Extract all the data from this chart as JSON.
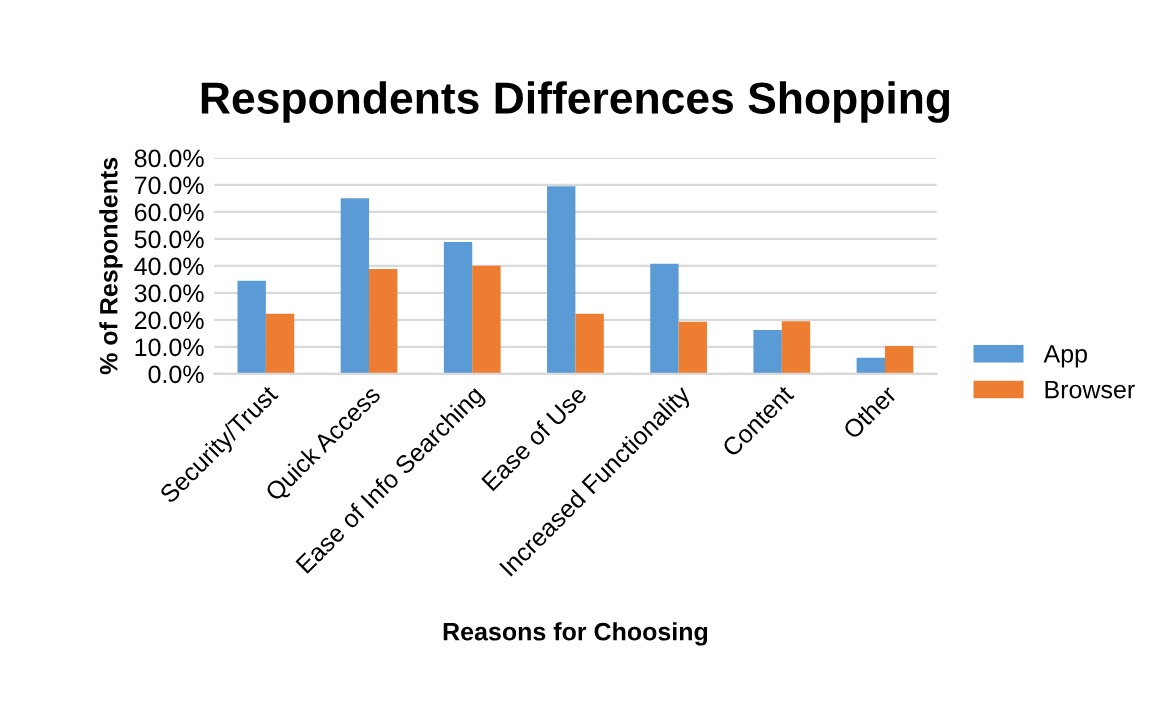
{
  "chart_data": {
    "type": "bar",
    "title": "Respondents Differences Shopping",
    "xlabel": "Reasons for Choosing",
    "ylabel": "% of Respondents",
    "categories": [
      "Security/Trust",
      "Quick Access",
      "Ease of Info Searching",
      "Ease of Use",
      "Increased Functionality",
      "Content",
      "Other"
    ],
    "series": [
      {
        "name": "App",
        "color": "#5b9bd5",
        "values": [
          34.5,
          65.0,
          48.8,
          69.5,
          40.8,
          16.2,
          6.0
        ]
      },
      {
        "name": "Browser",
        "color": "#ed7d31",
        "values": [
          22.3,
          38.8,
          40.0,
          22.3,
          19.3,
          19.5,
          10.3
        ]
      }
    ],
    "ylim": [
      0,
      80
    ],
    "yticks": [
      {
        "value": 0,
        "label": "0.0%"
      },
      {
        "value": 10,
        "label": "10.0%"
      },
      {
        "value": 20,
        "label": "20.0%"
      },
      {
        "value": 30,
        "label": "30.0%"
      },
      {
        "value": 40,
        "label": "40.0%"
      },
      {
        "value": 50,
        "label": "50.0%"
      },
      {
        "value": 60,
        "label": "60.0%"
      },
      {
        "value": 70,
        "label": "70.0%"
      },
      {
        "value": 80,
        "label": "80.0%"
      }
    ],
    "grid": "y",
    "legend": "right"
  }
}
